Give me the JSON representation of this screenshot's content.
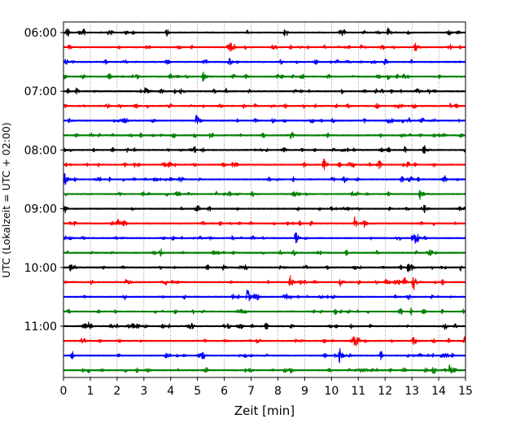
{
  "chart_data": {
    "type": "line",
    "title": "",
    "xlabel": "Zeit  [min]",
    "ylabel": "UTC (Lokalzeit = UTC + 02:00)",
    "xlim": [
      0,
      15
    ],
    "x_ticks": [
      "0",
      "1",
      "2",
      "3",
      "4",
      "5",
      "6",
      "7",
      "8",
      "9",
      "10",
      "11",
      "12",
      "13",
      "14",
      "15"
    ],
    "y_tick_labels": [
      "06:00",
      "07:00",
      "08:00",
      "09:00",
      "10:00",
      "11:00"
    ],
    "row_interval_minutes": 15,
    "row_start": "06:00",
    "row_count": 24,
    "vertical_grid": true,
    "grid_style": "dotted",
    "color_cycle": [
      "#000000",
      "#ff0000",
      "#0000ff",
      "#008000"
    ],
    "rows": [
      {
        "start": "06:00",
        "events_min": [
          12.1
        ]
      },
      {
        "start": "06:15",
        "events_min": [
          6.2,
          13.1
        ]
      },
      {
        "start": "06:30",
        "events_min": []
      },
      {
        "start": "06:45",
        "events_min": [
          5.2
        ]
      },
      {
        "start": "07:00",
        "events_min": [
          3.05
        ]
      },
      {
        "start": "07:15",
        "events_min": []
      },
      {
        "start": "07:30",
        "events_min": [
          4.95
        ]
      },
      {
        "start": "07:45",
        "events_min": []
      },
      {
        "start": "08:00",
        "events_min": [
          13.45
        ]
      },
      {
        "start": "08:15",
        "events_min": [
          9.7
        ]
      },
      {
        "start": "08:30",
        "events_min": [
          0.05
        ]
      },
      {
        "start": "08:45",
        "events_min": [
          13.3
        ]
      },
      {
        "start": "09:00",
        "events_min": [
          13.45
        ]
      },
      {
        "start": "09:15",
        "events_min": [
          10.85
        ]
      },
      {
        "start": "09:30",
        "events_min": [
          8.65,
          13.1
        ]
      },
      {
        "start": "09:45",
        "events_min": []
      },
      {
        "start": "10:00",
        "events_min": [
          0.25,
          12.85
        ]
      },
      {
        "start": "10:15",
        "events_min": [
          8.45,
          10.3,
          13.05
        ]
      },
      {
        "start": "10:30",
        "events_min": [
          6.85
        ]
      },
      {
        "start": "10:45",
        "events_min": []
      },
      {
        "start": "11:00",
        "events_min": [
          0.95
        ]
      },
      {
        "start": "11:15",
        "events_min": []
      },
      {
        "start": "11:30",
        "events_min": [
          10.3
        ]
      },
      {
        "start": "11:45",
        "events_min": [
          14.4
        ]
      }
    ]
  }
}
